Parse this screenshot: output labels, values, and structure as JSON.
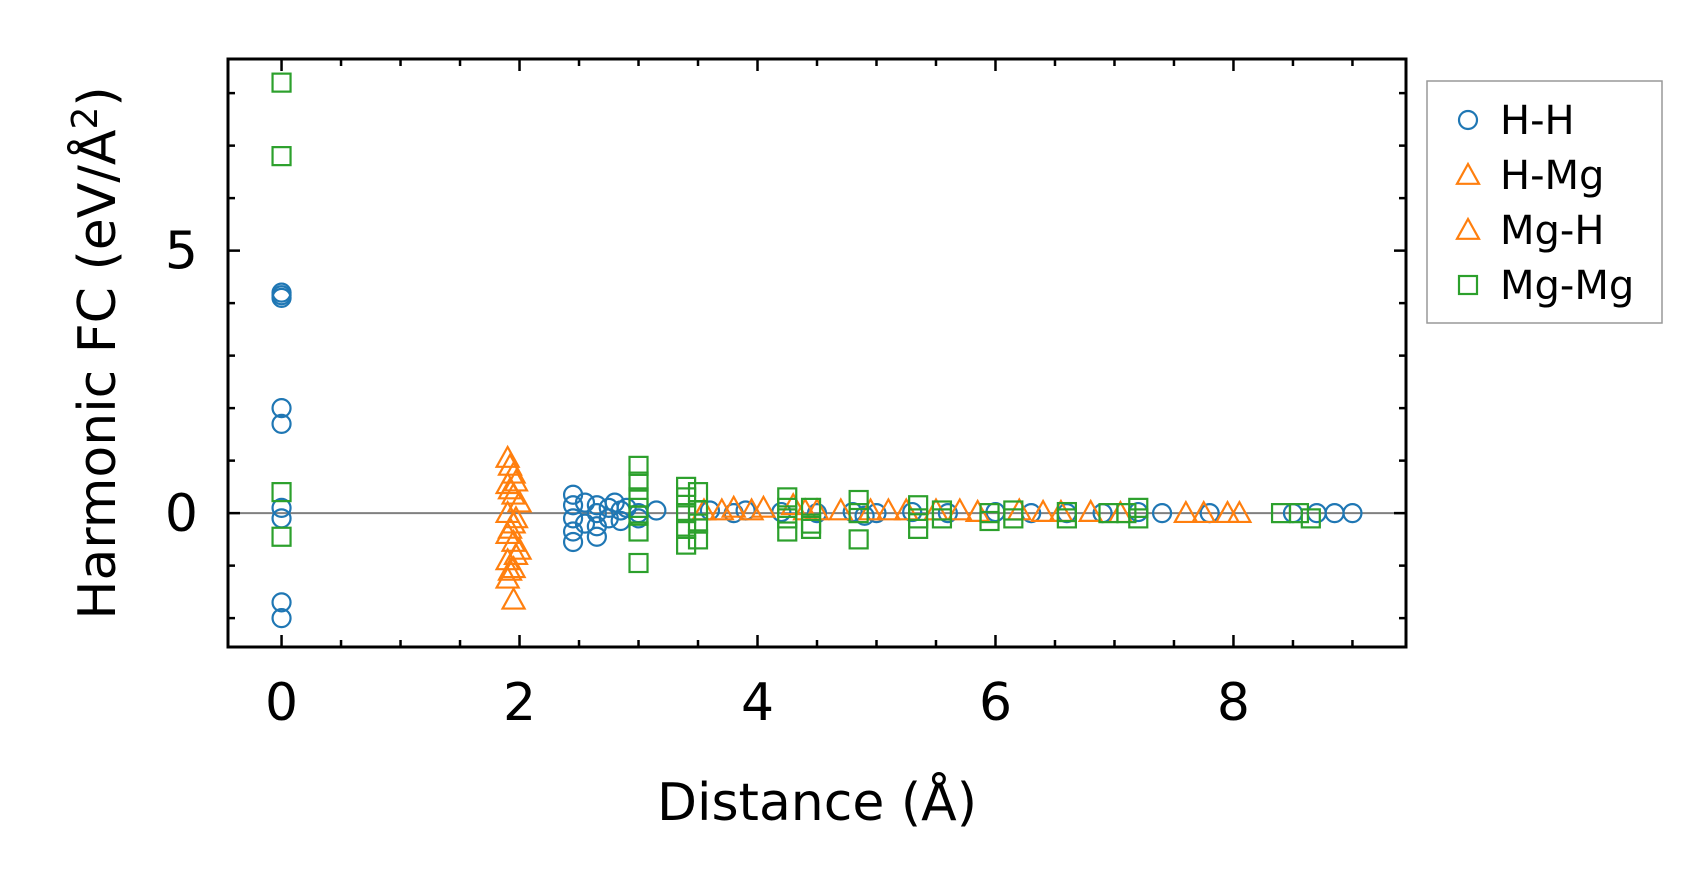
{
  "chart_data": {
    "type": "scatter",
    "xlabel": "Distance (Å)",
    "ylabel_main": "Harmonic FC (eV/Å",
    "ylabel_sup": "2",
    "ylabel_close": ")",
    "xlim": [
      -0.45,
      9.45
    ],
    "ylim": [
      -2.55,
      8.65
    ],
    "x_ticks": [
      {
        "value": 0,
        "label": "0"
      },
      {
        "value": 2,
        "label": "2"
      },
      {
        "value": 4,
        "label": "4"
      },
      {
        "value": 6,
        "label": "6"
      },
      {
        "value": 8,
        "label": "8"
      }
    ],
    "y_ticks": [
      {
        "value": 0,
        "label": "0"
      },
      {
        "value": 5,
        "label": "5"
      }
    ],
    "x_minor_step": 0.5,
    "y_minor_step": 1,
    "zero_line": true,
    "grid": false,
    "legend_position": "outside-right",
    "series": [
      {
        "name": "H-H",
        "marker": "circle",
        "color": "#1f77b4",
        "points": [
          [
            0,
            4.2
          ],
          [
            0,
            4.1
          ],
          [
            0,
            4.15
          ],
          [
            0,
            2.0
          ],
          [
            0,
            1.7
          ],
          [
            0,
            0.1
          ],
          [
            0,
            -0.1
          ],
          [
            0,
            -1.7
          ],
          [
            0,
            -2.0
          ],
          [
            2.45,
            0.35
          ],
          [
            2.45,
            0.15
          ],
          [
            2.45,
            -0.1
          ],
          [
            2.45,
            -0.35
          ],
          [
            2.45,
            -0.55
          ],
          [
            2.55,
            0.2
          ],
          [
            2.55,
            -0.2
          ],
          [
            2.65,
            0.15
          ],
          [
            2.65,
            0.0
          ],
          [
            2.65,
            -0.25
          ],
          [
            2.65,
            -0.45
          ],
          [
            2.75,
            0.1
          ],
          [
            2.75,
            -0.1
          ],
          [
            2.8,
            0.2
          ],
          [
            2.85,
            0.05
          ],
          [
            2.85,
            -0.15
          ],
          [
            2.9,
            0.1
          ],
          [
            3.0,
            0.0
          ],
          [
            3.0,
            -0.1
          ],
          [
            3.15,
            0.05
          ],
          [
            3.6,
            0.05
          ],
          [
            3.8,
            0.0
          ],
          [
            3.9,
            0.05
          ],
          [
            4.2,
            0.02
          ],
          [
            4.5,
            0.0
          ],
          [
            4.8,
            0.02
          ],
          [
            4.9,
            -0.05
          ],
          [
            5.0,
            0.0
          ],
          [
            5.3,
            0.02
          ],
          [
            5.6,
            0.0
          ],
          [
            6.0,
            0.02
          ],
          [
            6.3,
            0.0
          ],
          [
            6.6,
            0.0
          ],
          [
            6.9,
            0.0
          ],
          [
            7.2,
            0.02
          ],
          [
            7.4,
            0.0
          ],
          [
            7.8,
            0.0
          ],
          [
            8.5,
            0.0
          ],
          [
            8.7,
            0.0
          ],
          [
            8.85,
            0.0
          ],
          [
            9.0,
            0.0
          ]
        ]
      },
      {
        "name": "H-Mg",
        "marker": "triangle",
        "color": "#ff7f0e",
        "points": [
          [
            1.9,
            1.05
          ],
          [
            1.95,
            0.75
          ],
          [
            1.9,
            0.55
          ],
          [
            1.95,
            0.35
          ],
          [
            2.0,
            0.2
          ],
          [
            1.9,
            0.0
          ],
          [
            1.95,
            -0.2
          ],
          [
            1.9,
            -0.4
          ],
          [
            1.95,
            -0.55
          ],
          [
            2.0,
            -0.7
          ],
          [
            1.9,
            -0.9
          ],
          [
            1.95,
            -1.05
          ],
          [
            1.9,
            -1.25
          ],
          [
            1.95,
            -1.65
          ],
          [
            3.7,
            0.05
          ],
          [
            3.8,
            0.1
          ],
          [
            4.05,
            0.1
          ],
          [
            4.3,
            0.15
          ],
          [
            4.5,
            0.05
          ],
          [
            4.7,
            0.05
          ],
          [
            5.1,
            0.05
          ],
          [
            5.5,
            0.05
          ],
          [
            5.7,
            0.05
          ],
          [
            6.2,
            0.05
          ],
          [
            6.4,
            0.02
          ],
          [
            6.8,
            0.02
          ],
          [
            7.6,
            0.0
          ],
          [
            7.75,
            0.0
          ],
          [
            8.05,
            0.0
          ]
        ]
      },
      {
        "name": "Mg-H",
        "marker": "triangle",
        "color": "#ff7f0e",
        "points": [
          [
            1.92,
            0.9
          ],
          [
            1.97,
            0.6
          ],
          [
            1.92,
            0.45
          ],
          [
            1.97,
            -0.1
          ],
          [
            1.92,
            -0.3
          ],
          [
            1.97,
            -0.8
          ],
          [
            1.92,
            -1.1
          ],
          [
            3.55,
            0.05
          ],
          [
            3.95,
            0.05
          ],
          [
            4.4,
            0.05
          ],
          [
            4.95,
            0.05
          ],
          [
            5.25,
            0.05
          ],
          [
            5.85,
            0.02
          ],
          [
            6.55,
            0.02
          ],
          [
            7.05,
            0.0
          ],
          [
            7.95,
            0.0
          ]
        ]
      },
      {
        "name": "Mg-Mg",
        "marker": "square",
        "color": "#2ca02c",
        "points": [
          [
            0,
            8.2
          ],
          [
            0,
            6.8
          ],
          [
            0,
            0.4
          ],
          [
            0,
            -0.45
          ],
          [
            3.0,
            0.9
          ],
          [
            3.0,
            0.6
          ],
          [
            3.0,
            0.3
          ],
          [
            3.0,
            0.1
          ],
          [
            3.0,
            -0.05
          ],
          [
            3.0,
            -0.35
          ],
          [
            3.0,
            -0.95
          ],
          [
            3.4,
            0.5
          ],
          [
            3.4,
            0.3
          ],
          [
            3.4,
            0.0
          ],
          [
            3.4,
            -0.3
          ],
          [
            3.4,
            -0.6
          ],
          [
            3.5,
            0.4
          ],
          [
            3.5,
            0.05
          ],
          [
            3.5,
            -0.2
          ],
          [
            3.5,
            -0.5
          ],
          [
            4.25,
            0.3
          ],
          [
            4.25,
            0.1
          ],
          [
            4.25,
            -0.1
          ],
          [
            4.25,
            -0.35
          ],
          [
            4.45,
            0.1
          ],
          [
            4.45,
            -0.2
          ],
          [
            4.45,
            -0.3
          ],
          [
            4.85,
            0.25
          ],
          [
            4.85,
            0.0
          ],
          [
            4.85,
            -0.5
          ],
          [
            5.35,
            0.15
          ],
          [
            5.35,
            -0.1
          ],
          [
            5.35,
            -0.3
          ],
          [
            5.55,
            0.05
          ],
          [
            5.55,
            -0.1
          ],
          [
            5.95,
            0.0
          ],
          [
            5.95,
            -0.15
          ],
          [
            6.15,
            0.05
          ],
          [
            6.15,
            -0.1
          ],
          [
            6.6,
            0.02
          ],
          [
            6.6,
            -0.1
          ],
          [
            6.95,
            0.0
          ],
          [
            7.1,
            0.0
          ],
          [
            7.2,
            0.1
          ],
          [
            7.2,
            -0.1
          ],
          [
            8.4,
            0.0
          ],
          [
            8.55,
            0.0
          ],
          [
            8.65,
            -0.1
          ]
        ]
      }
    ],
    "legend": [
      {
        "label": "H-H",
        "marker": "circle",
        "color": "#1f77b4"
      },
      {
        "label": "H-Mg",
        "marker": "triangle",
        "color": "#ff7f0e"
      },
      {
        "label": "Mg-H",
        "marker": "triangle",
        "color": "#ff7f0e"
      },
      {
        "label": "Mg-Mg",
        "marker": "square",
        "color": "#2ca02c"
      }
    ]
  }
}
